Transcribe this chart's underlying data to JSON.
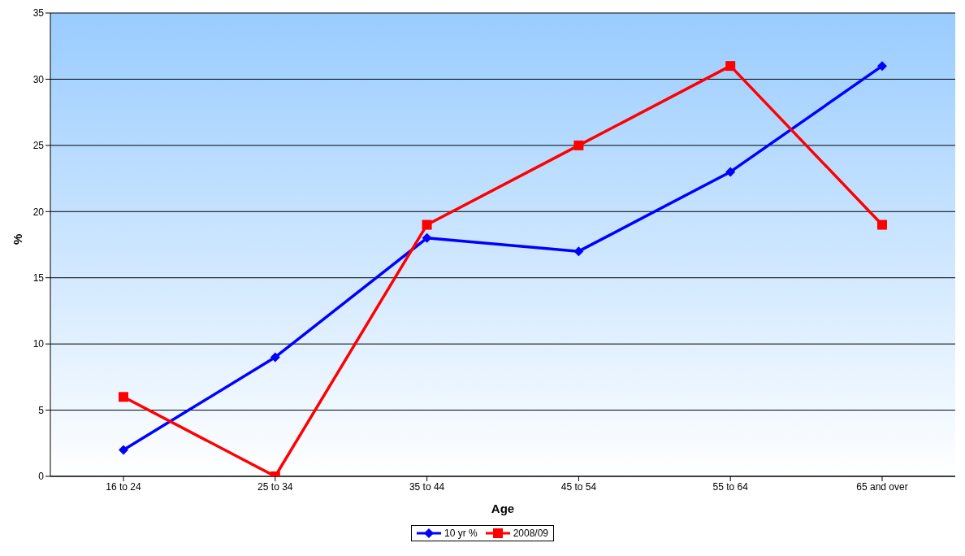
{
  "chart_data": {
    "type": "line",
    "xlabel": "Age",
    "ylabel": "%",
    "categories": [
      "16 to 24",
      "25 to 34",
      "35 to 44",
      "45 to 54",
      "55 to 64",
      "65 and over"
    ],
    "series": [
      {
        "name": "10 yr %",
        "color": "#0000ff",
        "marker": "diamond",
        "values": [
          2,
          9,
          18,
          17,
          23,
          31
        ]
      },
      {
        "name": "2008/09",
        "color": "#ff0000",
        "marker": "square",
        "values": [
          6,
          0,
          19,
          25,
          31,
          19
        ]
      }
    ],
    "ylim": [
      0,
      35
    ],
    "yticks": [
      0,
      5,
      10,
      15,
      20,
      25,
      30,
      35
    ],
    "grid": "y",
    "legend": "bottom",
    "line_style": "solid"
  }
}
